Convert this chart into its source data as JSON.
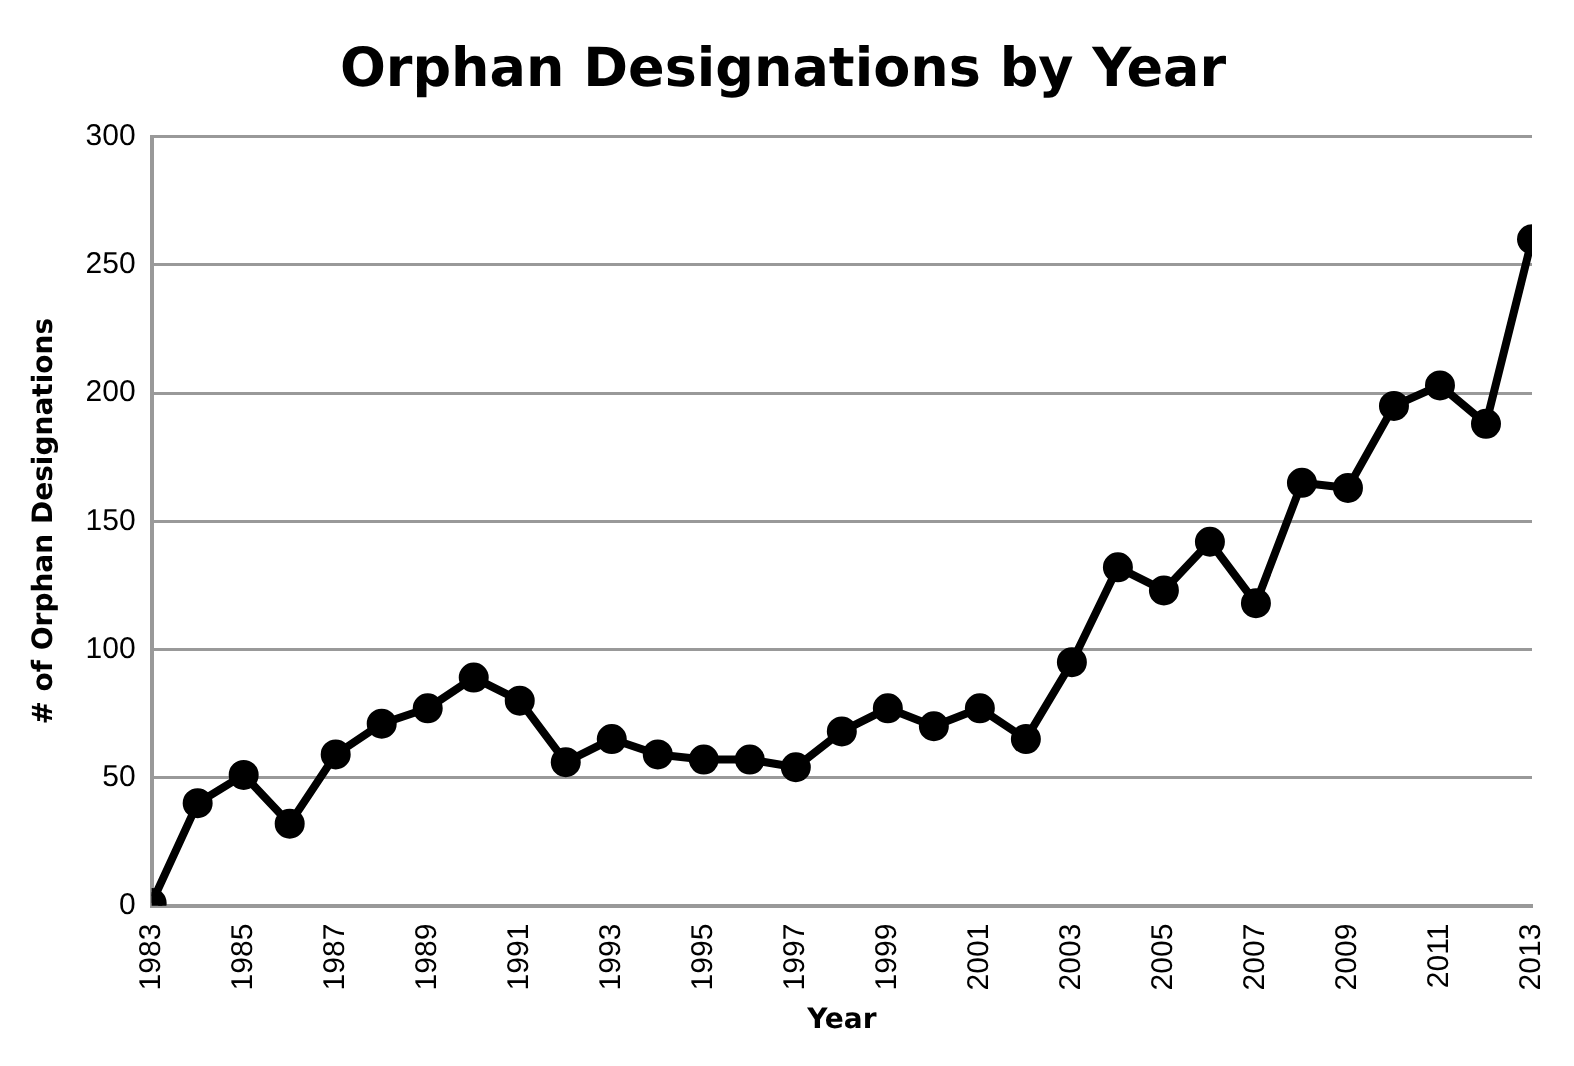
{
  "chart_data": {
    "type": "line",
    "title": "Orphan Designations by Year",
    "xlabel": "Year",
    "ylabel": "# of Orphan Designations",
    "x": [
      1983,
      1984,
      1985,
      1986,
      1987,
      1988,
      1989,
      1990,
      1991,
      1992,
      1993,
      1994,
      1995,
      1996,
      1997,
      1998,
      1999,
      2000,
      2001,
      2002,
      2003,
      2004,
      2005,
      2006,
      2007,
      2008,
      2009,
      2010,
      2011,
      2012,
      2013
    ],
    "series": [
      {
        "color": "#000000",
        "values": [
          1,
          40,
          51,
          32,
          59,
          71,
          77,
          89,
          80,
          56,
          65,
          59,
          57,
          57,
          54,
          68,
          77,
          70,
          77,
          65,
          95,
          132,
          123,
          142,
          118,
          165,
          163,
          195,
          203,
          188,
          260
        ]
      }
    ],
    "xlim": [
      1983,
      2013
    ],
    "xticks": [
      1983,
      1985,
      1987,
      1989,
      1991,
      1993,
      1995,
      1997,
      1999,
      2001,
      2003,
      2005,
      2007,
      2009,
      2011,
      2013
    ],
    "ylim": [
      0,
      300
    ],
    "yticks": [
      0,
      50,
      100,
      150,
      200,
      250,
      300
    ],
    "grid": "y",
    "legend": false,
    "marker": "circle",
    "line_style": "solid"
  }
}
